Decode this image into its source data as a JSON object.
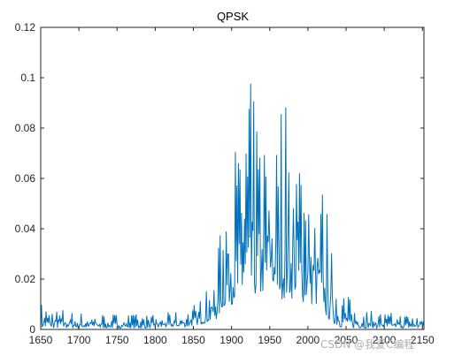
{
  "chart_data": {
    "type": "line",
    "title": "QPSK",
    "xlabel": "",
    "ylabel": "",
    "xlim": [
      1650,
      2152
    ],
    "ylim": [
      0,
      0.12
    ],
    "xticks": [
      1650,
      1700,
      1750,
      1800,
      1850,
      1900,
      1950,
      2000,
      2050,
      2100,
      2150
    ],
    "xtick_labels": [
      "1650",
      "1700",
      "1750",
      "1800",
      "1850",
      "1900",
      "1950",
      "2000",
      "2050",
      "2100",
      "2150"
    ],
    "yticks": [
      0,
      0.02,
      0.04,
      0.06,
      0.08,
      0.1,
      0.12
    ],
    "ytick_labels": [
      "0",
      "0.02",
      "0.04",
      "0.06",
      "0.08",
      "0.1",
      "0.12"
    ],
    "grid": false,
    "box": true,
    "series": [
      {
        "color": "#0072BD",
        "envelope": {
          "x": [
            1650,
            1700,
            1800,
            1840,
            1860,
            1880,
            1890,
            1900,
            1910,
            1920,
            1930,
            1940,
            1950,
            1960,
            1970,
            1980,
            1990,
            2000,
            2010,
            2020,
            2030,
            2040,
            2060,
            2100,
            2152
          ],
          "peak": [
            0.011,
            0.007,
            0.006,
            0.008,
            0.013,
            0.022,
            0.06,
            0.075,
            0.08,
            0.106,
            0.092,
            0.09,
            0.091,
            0.087,
            0.102,
            0.088,
            0.083,
            0.08,
            0.064,
            0.06,
            0.038,
            0.02,
            0.01,
            0.007,
            0.006
          ],
          "floor": [
            0.0005,
            0.0005,
            0.0005,
            0.001,
            0.002,
            0.004,
            0.008,
            0.01,
            0.011,
            0.012,
            0.012,
            0.012,
            0.012,
            0.012,
            0.012,
            0.012,
            0.011,
            0.01,
            0.008,
            0.006,
            0.003,
            0.001,
            0.0005,
            0.0005,
            0.0005
          ]
        }
      }
    ]
  },
  "watermark": "CSDN @我爱C编程"
}
